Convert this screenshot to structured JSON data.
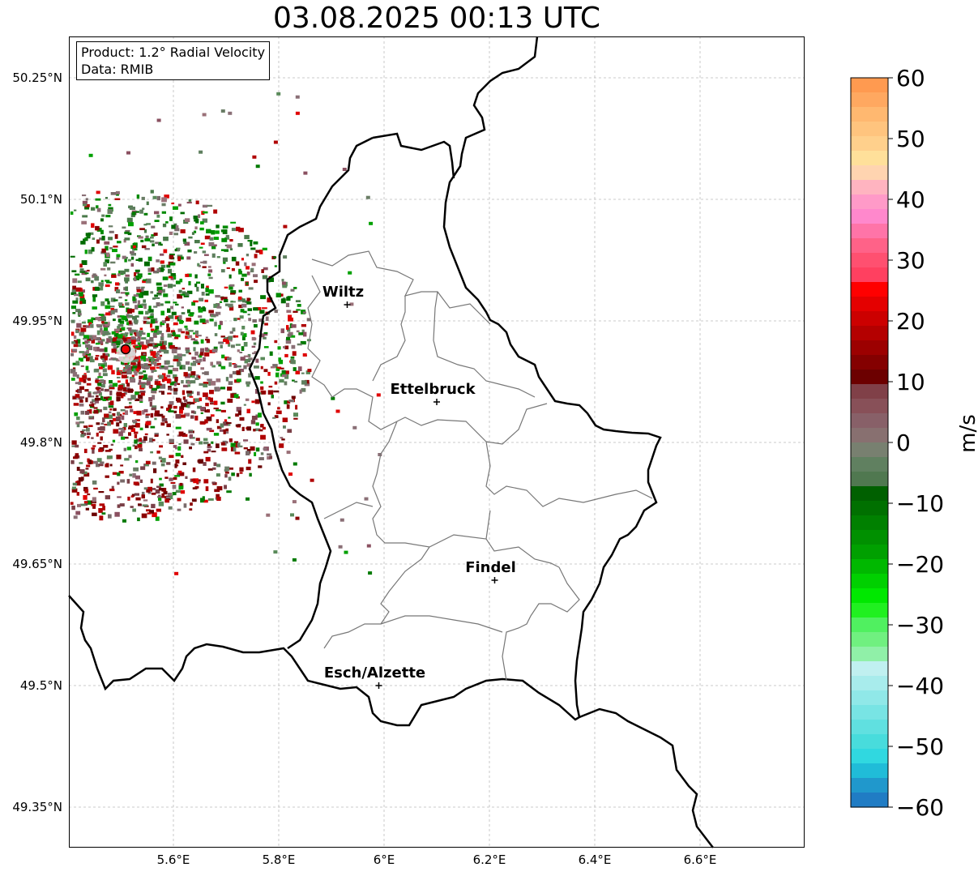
{
  "title": "03.08.2025 00:13 UTC",
  "legend": {
    "product": "Product: 1.2° Radial Velocity",
    "data": "Data: RMIB"
  },
  "map": {
    "lon_ticks": [
      "5.6°E",
      "5.8°E",
      "6°E",
      "6.2°E",
      "6.4°E",
      "6.6°E"
    ],
    "lat_ticks": [
      "50.25°N",
      "50.1°N",
      "49.95°N",
      "49.8°N",
      "49.65°N",
      "49.5°N",
      "49.35°N"
    ],
    "cities": [
      {
        "name": "Wiltz",
        "lon": 5.93,
        "lat": 49.97
      },
      {
        "name": "Ettelbruck",
        "lon": 6.1,
        "lat": 49.85
      },
      {
        "name": "Findel",
        "lon": 6.21,
        "lat": 49.63
      },
      {
        "name": "Esch/Alzette",
        "lon": 5.99,
        "lat": 49.5
      }
    ],
    "radar_site": {
      "lon": 5.51,
      "lat": 49.91
    },
    "grid": true
  },
  "colorbar": {
    "label": "m/s",
    "ticks": [
      "60",
      "50",
      "40",
      "30",
      "20",
      "10",
      "0",
      "−10",
      "−20",
      "−30",
      "−40",
      "−50",
      "−60"
    ],
    "range": [
      -60,
      60
    ],
    "colors": [
      "#ff9a50",
      "#ffa860",
      "#ffb870",
      "#ffc47e",
      "#ffd08c",
      "#ffe09a",
      "#ffd4b0",
      "#ffb4c0",
      "#ff9ac8",
      "#ff88cc",
      "#ff74a8",
      "#ff6288",
      "#ff5070",
      "#ff4060",
      "#ff0000",
      "#e40000",
      "#cc0000",
      "#b40000",
      "#9c0000",
      "#840000",
      "#6c0000",
      "#804048",
      "#885058",
      "#886068",
      "#887070",
      "#788070",
      "#608060",
      "#507850",
      "#006000",
      "#007000",
      "#008000",
      "#009000",
      "#00a000",
      "#00b800",
      "#00d000",
      "#00e800",
      "#20f020",
      "#50f060",
      "#70f080",
      "#90f0a8",
      "#c0f0f0",
      "#a8ecec",
      "#90e8e8",
      "#78e4e4",
      "#60e0e0",
      "#48dcdc",
      "#30d8e0",
      "#20bcd8",
      "#2098cc",
      "#207cc4"
    ]
  }
}
